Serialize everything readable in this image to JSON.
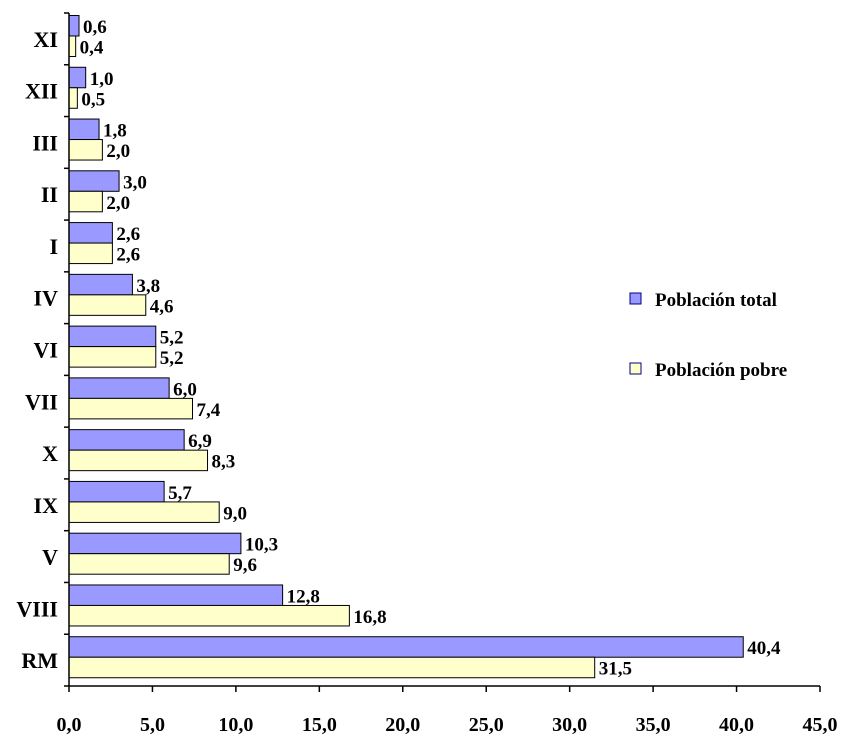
{
  "chart_data": {
    "type": "bar",
    "orientation": "horizontal",
    "categories": [
      "XI",
      "XII",
      "III",
      "II",
      "I",
      "IV",
      "VI",
      "VII",
      "X",
      "IX",
      "V",
      "VIII",
      "RM"
    ],
    "series": [
      {
        "name": "Población total",
        "color": "#9999ff",
        "values": [
          0.6,
          1.0,
          1.8,
          3.0,
          2.6,
          3.8,
          5.2,
          6.0,
          6.9,
          5.7,
          10.3,
          12.8,
          40.4
        ],
        "labels": [
          "0,6",
          "1,0",
          "1,8",
          "3,0",
          "2,6",
          "3,8",
          "5,2",
          "6,0",
          "6,9",
          "5,7",
          "10,3",
          "12,8",
          "40,4"
        ]
      },
      {
        "name": "Población pobre",
        "color": "#ffffcc",
        "values": [
          0.4,
          0.5,
          2.0,
          2.0,
          2.6,
          4.6,
          5.2,
          7.4,
          8.3,
          9.0,
          9.6,
          16.8,
          31.5
        ],
        "labels": [
          "0,4",
          "0,5",
          "2,0",
          "2,0",
          "2,6",
          "4,6",
          "5,2",
          "7,4",
          "8,3",
          "9,0",
          "9,6",
          "16,8",
          "31,5"
        ]
      }
    ],
    "xlim": [
      0,
      45
    ],
    "xticks": [
      0,
      5,
      10,
      15,
      20,
      25,
      30,
      35,
      40,
      45
    ],
    "xtick_labels": [
      "0,0",
      "5,0",
      "10,0",
      "15,0",
      "20,0",
      "25,0",
      "30,0",
      "35,0",
      "40,0",
      "45,0"
    ],
    "grid": false,
    "legend_position": "right",
    "title": "",
    "xlabel": "",
    "ylabel": ""
  }
}
